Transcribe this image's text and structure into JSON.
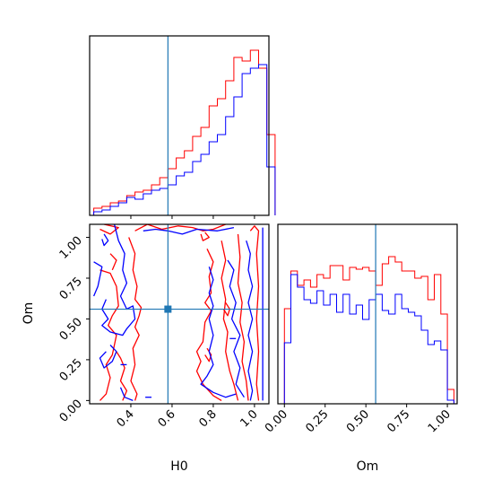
{
  "chart_data": [
    {
      "type": "histogram",
      "parameter": "H0",
      "x": [
        0.22,
        0.26,
        0.3,
        0.34,
        0.38,
        0.42,
        0.46,
        0.5,
        0.54,
        0.58,
        0.62,
        0.66,
        0.7,
        0.74,
        0.78,
        0.82,
        0.86,
        0.9,
        0.94,
        0.98,
        1.02,
        1.06
      ],
      "series": [
        {
          "color": "#ff0000",
          "values": [
            0.04,
            0.05,
            0.07,
            0.08,
            0.11,
            0.13,
            0.14,
            0.17,
            0.21,
            0.26,
            0.32,
            0.36,
            0.44,
            0.49,
            0.61,
            0.65,
            0.75,
            0.88,
            0.86,
            0.92,
            0.82,
            0.45
          ]
        },
        {
          "color": "#0000ff",
          "values": [
            0.02,
            0.03,
            0.05,
            0.07,
            0.1,
            0.09,
            0.12,
            0.14,
            0.15,
            0.17,
            0.22,
            0.24,
            0.3,
            0.34,
            0.41,
            0.45,
            0.55,
            0.66,
            0.79,
            0.82,
            0.84,
            0.27
          ]
        }
      ],
      "truth": 0.58,
      "xlim": [
        0.2,
        1.07
      ]
    },
    {
      "type": "histogram",
      "parameter": "Om",
      "x": [
        0.0,
        0.04,
        0.08,
        0.12,
        0.16,
        0.2,
        0.24,
        0.28,
        0.32,
        0.36,
        0.4,
        0.44,
        0.48,
        0.52,
        0.56,
        0.6,
        0.64,
        0.68,
        0.72,
        0.76,
        0.8,
        0.84,
        0.88,
        0.92,
        0.96,
        1.0
      ],
      "series": [
        {
          "color": "#ff0000",
          "values": [
            0.53,
            0.74,
            0.66,
            0.69,
            0.65,
            0.72,
            0.7,
            0.77,
            0.77,
            0.69,
            0.76,
            0.75,
            0.76,
            0.74,
            0.66,
            0.78,
            0.82,
            0.79,
            0.74,
            0.74,
            0.7,
            0.71,
            0.58,
            0.72,
            0.5,
            0.08
          ]
        },
        {
          "color": "#0000ff",
          "values": [
            0.34,
            0.72,
            0.65,
            0.58,
            0.56,
            0.63,
            0.55,
            0.61,
            0.51,
            0.61,
            0.5,
            0.55,
            0.47,
            0.58,
            0.61,
            0.52,
            0.5,
            0.61,
            0.53,
            0.51,
            0.49,
            0.41,
            0.33,
            0.35,
            0.3,
            0.02
          ]
        }
      ],
      "truth": 0.56,
      "xlim": [
        -0.04,
        1.06
      ]
    },
    {
      "type": "contour",
      "x_param": "H0",
      "y_param": "Om",
      "xlim": [
        0.2,
        1.07
      ],
      "ylim": [
        -0.02,
        1.08
      ],
      "truth": {
        "H0": 0.58,
        "Om": 0.56
      },
      "series": [
        {
          "color": "#ff0000",
          "contours": [
            [
              [
                0.25,
                1.05
              ],
              [
                0.3,
                1.02
              ],
              [
                0.34,
                1.06
              ],
              [
                0.27,
                1.08
              ]
            ],
            [
              [
                0.25,
                0.8
              ],
              [
                0.3,
                0.78
              ],
              [
                0.33,
                0.7
              ],
              [
                0.34,
                0.58
              ],
              [
                0.31,
                0.52
              ],
              [
                0.29,
                0.46
              ],
              [
                0.33,
                0.4
              ],
              [
                0.31,
                0.28
              ],
              [
                0.28,
                0.22
              ],
              [
                0.3,
                0.14
              ],
              [
                0.28,
                0.04
              ],
              [
                0.25,
                0.0
              ]
            ],
            [
              [
                0.3,
                0.9
              ],
              [
                0.33,
                0.86
              ],
              [
                0.31,
                0.8
              ]
            ],
            [
              [
                0.33,
                0.3
              ],
              [
                0.35,
                0.26
              ],
              [
                0.37,
                0.2
              ],
              [
                0.35,
                0.12
              ],
              [
                0.38,
                0.06
              ],
              [
                0.36,
                0.0
              ]
            ],
            [
              [
                0.39,
                1.0
              ],
              [
                0.42,
                0.9
              ],
              [
                0.41,
                0.8
              ],
              [
                0.43,
                0.7
              ],
              [
                0.42,
                0.62
              ],
              [
                0.45,
                0.57
              ],
              [
                0.44,
                0.52
              ],
              [
                0.42,
                0.45
              ],
              [
                0.44,
                0.4
              ],
              [
                0.41,
                0.32
              ],
              [
                0.42,
                0.22
              ],
              [
                0.4,
                0.12
              ],
              [
                0.43,
                0.04
              ],
              [
                0.42,
                0.0
              ]
            ],
            [
              [
                0.42,
                1.04
              ],
              [
                0.48,
                1.08
              ],
              [
                0.55,
                1.05
              ],
              [
                0.63,
                1.07
              ],
              [
                0.7,
                1.06
              ],
              [
                0.75,
                1.04
              ],
              [
                0.8,
                1.05
              ],
              [
                0.86,
                1.08
              ]
            ],
            [
              [
                0.76,
                1.03
              ],
              [
                0.78,
                1.0
              ],
              [
                0.75,
                0.98
              ],
              [
                0.74,
                1.02
              ]
            ],
            [
              [
                0.77,
                0.93
              ],
              [
                0.8,
                0.85
              ],
              [
                0.78,
                0.76
              ],
              [
                0.79,
                0.66
              ],
              [
                0.76,
                0.6
              ],
              [
                0.79,
                0.55
              ],
              [
                0.76,
                0.48
              ],
              [
                0.75,
                0.36
              ],
              [
                0.72,
                0.3
              ],
              [
                0.74,
                0.24
              ],
              [
                0.72,
                0.18
              ],
              [
                0.75,
                0.1
              ],
              [
                0.8,
                0.03
              ],
              [
                0.84,
                0.0
              ]
            ],
            [
              [
                0.84,
                0.98
              ],
              [
                0.86,
                0.86
              ],
              [
                0.84,
                0.75
              ],
              [
                0.86,
                0.62
              ],
              [
                0.85,
                0.5
              ],
              [
                0.87,
                0.42
              ],
              [
                0.86,
                0.3
              ],
              [
                0.88,
                0.18
              ],
              [
                0.9,
                0.1
              ],
              [
                0.92,
                0.0
              ]
            ],
            [
              [
                0.92,
                1.02
              ],
              [
                0.93,
                0.88
              ],
              [
                0.92,
                0.72
              ],
              [
                0.94,
                0.6
              ],
              [
                0.93,
                0.48
              ],
              [
                0.95,
                0.36
              ],
              [
                0.94,
                0.24
              ],
              [
                0.96,
                0.12
              ],
              [
                0.97,
                0.0
              ]
            ],
            [
              [
                0.98,
                1.04
              ],
              [
                1.0,
                1.07
              ],
              [
                1.02,
                1.04
              ],
              [
                1.01,
                0.9
              ],
              [
                1.02,
                0.7
              ],
              [
                1.01,
                0.5
              ],
              [
                1.02,
                0.3
              ],
              [
                1.01,
                0.1
              ],
              [
                1.02,
                0.0
              ]
            ],
            [
              [
                0.86,
                0.6
              ],
              [
                0.88,
                0.56
              ],
              [
                0.87,
                0.52
              ],
              [
                0.85,
                0.56
              ]
            ],
            [
              [
                0.77,
                0.32
              ],
              [
                0.79,
                0.28
              ],
              [
                0.78,
                0.24
              ],
              [
                0.76,
                0.28
              ]
            ]
          ]
        },
        {
          "color": "#0000ff",
          "contours": [
            [
              [
                0.27,
                1.02
              ],
              [
                0.29,
                0.98
              ],
              [
                0.27,
                0.95
              ],
              [
                0.26,
                0.99
              ]
            ],
            [
              [
                0.32,
                1.08
              ],
              [
                0.34,
                0.98
              ],
              [
                0.37,
                0.9
              ],
              [
                0.36,
                0.8
              ],
              [
                0.38,
                0.72
              ],
              [
                0.35,
                0.64
              ],
              [
                0.38,
                0.56
              ],
              [
                0.41,
                0.58
              ],
              [
                0.42,
                0.5
              ],
              [
                0.38,
                0.44
              ],
              [
                0.36,
                0.4
              ],
              [
                0.3,
                0.42
              ],
              [
                0.26,
                0.46
              ],
              [
                0.29,
                0.5
              ],
              [
                0.26,
                0.56
              ],
              [
                0.28,
                0.62
              ]
            ],
            [
              [
                0.22,
                0.85
              ],
              [
                0.26,
                0.82
              ],
              [
                0.24,
                0.7
              ],
              [
                0.22,
                0.64
              ]
            ],
            [
              [
                0.3,
                0.34
              ],
              [
                0.33,
                0.3
              ],
              [
                0.31,
                0.24
              ],
              [
                0.27,
                0.2
              ],
              [
                0.25,
                0.26
              ],
              [
                0.28,
                0.3
              ]
            ],
            [
              [
                0.35,
                0.08
              ],
              [
                0.37,
                0.02
              ],
              [
                0.41,
                0.0
              ]
            ],
            [
              [
                0.46,
                1.04
              ],
              [
                0.52,
                1.05
              ],
              [
                0.58,
                1.04
              ],
              [
                0.65,
                1.02
              ],
              [
                0.72,
                1.05
              ],
              [
                0.82,
                1.04
              ],
              [
                0.9,
                1.06
              ]
            ],
            [
              [
                0.78,
                0.82
              ],
              [
                0.8,
                0.74
              ],
              [
                0.78,
                0.66
              ],
              [
                0.8,
                0.58
              ],
              [
                0.78,
                0.5
              ],
              [
                0.8,
                0.4
              ],
              [
                0.78,
                0.3
              ],
              [
                0.8,
                0.22
              ],
              [
                0.77,
                0.15
              ],
              [
                0.74,
                0.1
              ],
              [
                0.8,
                0.05
              ],
              [
                0.86,
                0.02
              ],
              [
                0.91,
                0.04
              ]
            ],
            [
              [
                0.87,
                0.86
              ],
              [
                0.9,
                0.8
              ],
              [
                0.88,
                0.7
              ],
              [
                0.91,
                0.6
              ],
              [
                0.89,
                0.5
              ],
              [
                0.93,
                0.4
              ],
              [
                0.9,
                0.3
              ],
              [
                0.93,
                0.2
              ],
              [
                0.91,
                0.1
              ],
              [
                0.95,
                0.02
              ]
            ],
            [
              [
                0.96,
                0.98
              ],
              [
                0.98,
                0.9
              ],
              [
                0.97,
                0.8
              ],
              [
                0.99,
                0.7
              ],
              [
                0.97,
                0.6
              ],
              [
                0.99,
                0.5
              ],
              [
                0.97,
                0.4
              ],
              [
                0.99,
                0.3
              ],
              [
                0.97,
                0.18
              ],
              [
                0.99,
                0.06
              ],
              [
                0.98,
                0.0
              ]
            ],
            [
              [
                1.04,
                1.06
              ],
              [
                1.04,
                0.0
              ]
            ],
            [
              [
                0.35,
                0.22
              ],
              [
                0.38,
                0.22
              ]
            ],
            [
              [
                0.47,
                0.02
              ],
              [
                0.5,
                0.02
              ]
            ],
            [
              [
                0.88,
                0.38
              ],
              [
                0.91,
                0.38
              ]
            ]
          ]
        }
      ]
    }
  ],
  "axes": {
    "h0_ticks": [
      "0.4",
      "0.6",
      "0.8",
      "1.0"
    ],
    "om_ticks": [
      "0.00",
      "0.25",
      "0.50",
      "0.75",
      "1.00"
    ],
    "h0_label": "H0",
    "om_label": "Om"
  }
}
